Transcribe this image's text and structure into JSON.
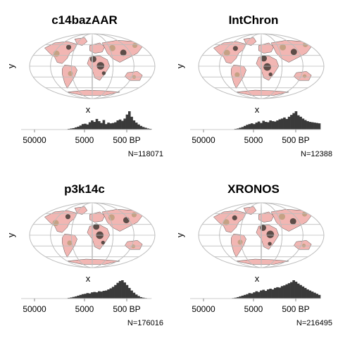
{
  "chart_data": [
    {
      "type": "map+histogram",
      "title": "c14bazAAR",
      "xlabel": "x",
      "ylabel": "y",
      "hist_ticks": [
        "50000",
        "5000",
        "500 BP"
      ],
      "n_label": "N=118071",
      "hist_shape": [
        0,
        0,
        0,
        0,
        0,
        0,
        0,
        0,
        0,
        0,
        0,
        0,
        0,
        0,
        0,
        0,
        0,
        0,
        0,
        0.02,
        0.04,
        0.06,
        0.08,
        0.12,
        0.16,
        0.22,
        0.3,
        0.32,
        0.28,
        0.4,
        0.5,
        0.42,
        0.58,
        0.46,
        0.36,
        0.52,
        0.3,
        0.38,
        0.34,
        0.36,
        0.4,
        0.5,
        0.55,
        0.48,
        0.6,
        0.82,
        1.0,
        0.7,
        0.5,
        0.38,
        0.28,
        0.2,
        0.14,
        0.1,
        0.06,
        0.04
      ]
    },
    {
      "type": "map+histogram",
      "title": "IntChron",
      "xlabel": "x",
      "ylabel": "y",
      "hist_ticks": [
        "50000",
        "5000",
        "500 BP"
      ],
      "n_label": "N=12388",
      "hist_shape": [
        0,
        0,
        0,
        0,
        0,
        0,
        0,
        0,
        0,
        0,
        0,
        0,
        0,
        0,
        0,
        0,
        0,
        0,
        0.02,
        0.04,
        0.06,
        0.1,
        0.14,
        0.2,
        0.26,
        0.3,
        0.34,
        0.3,
        0.38,
        0.44,
        0.36,
        0.48,
        0.42,
        0.4,
        0.5,
        0.46,
        0.44,
        0.5,
        0.56,
        0.6,
        0.66,
        0.58,
        0.7,
        0.8,
        0.9,
        1.0,
        0.78,
        0.7,
        0.6,
        0.52,
        0.46,
        0.42,
        0.4,
        0.38,
        0.36,
        0.34
      ]
    },
    {
      "type": "map+histogram",
      "title": "p3k14c",
      "xlabel": "x",
      "ylabel": "y",
      "hist_ticks": [
        "50000",
        "5000",
        "500 BP"
      ],
      "n_label": "N=176016",
      "hist_shape": [
        0,
        0,
        0,
        0,
        0,
        0,
        0,
        0,
        0,
        0,
        0,
        0,
        0,
        0,
        0,
        0,
        0,
        0,
        0.01,
        0.02,
        0.04,
        0.06,
        0.09,
        0.12,
        0.16,
        0.2,
        0.24,
        0.26,
        0.3,
        0.28,
        0.34,
        0.36,
        0.34,
        0.4,
        0.38,
        0.42,
        0.44,
        0.5,
        0.56,
        0.64,
        0.74,
        0.86,
        0.96,
        1.0,
        0.88,
        0.74,
        0.58,
        0.44,
        0.32,
        0.22,
        0.14,
        0.08,
        0.05,
        0.03,
        0.02,
        0.01
      ]
    },
    {
      "type": "map+histogram",
      "title": "XRONOS",
      "xlabel": "x",
      "ylabel": "y",
      "hist_ticks": [
        "50000",
        "5000",
        "500 BP"
      ],
      "n_label": "N=216495",
      "hist_shape": [
        0,
        0,
        0,
        0,
        0,
        0,
        0,
        0,
        0,
        0,
        0,
        0,
        0,
        0,
        0,
        0,
        0,
        0.01,
        0.03,
        0.05,
        0.08,
        0.12,
        0.16,
        0.2,
        0.24,
        0.3,
        0.28,
        0.34,
        0.4,
        0.36,
        0.44,
        0.48,
        0.42,
        0.5,
        0.54,
        0.5,
        0.58,
        0.62,
        0.6,
        0.68,
        0.72,
        0.78,
        0.84,
        0.9,
        1.0,
        0.92,
        0.82,
        0.74,
        0.66,
        0.58,
        0.5,
        0.44,
        0.38,
        0.32,
        0.26,
        0.2
      ]
    }
  ],
  "colors": {
    "land_light": "#f2b6b3",
    "land_mid": "#b59a74",
    "land_dark": "#2b2a24",
    "graticule": "#bdbdbd",
    "histogram": "#3a3a3a",
    "axis_line": "#cccccc"
  }
}
